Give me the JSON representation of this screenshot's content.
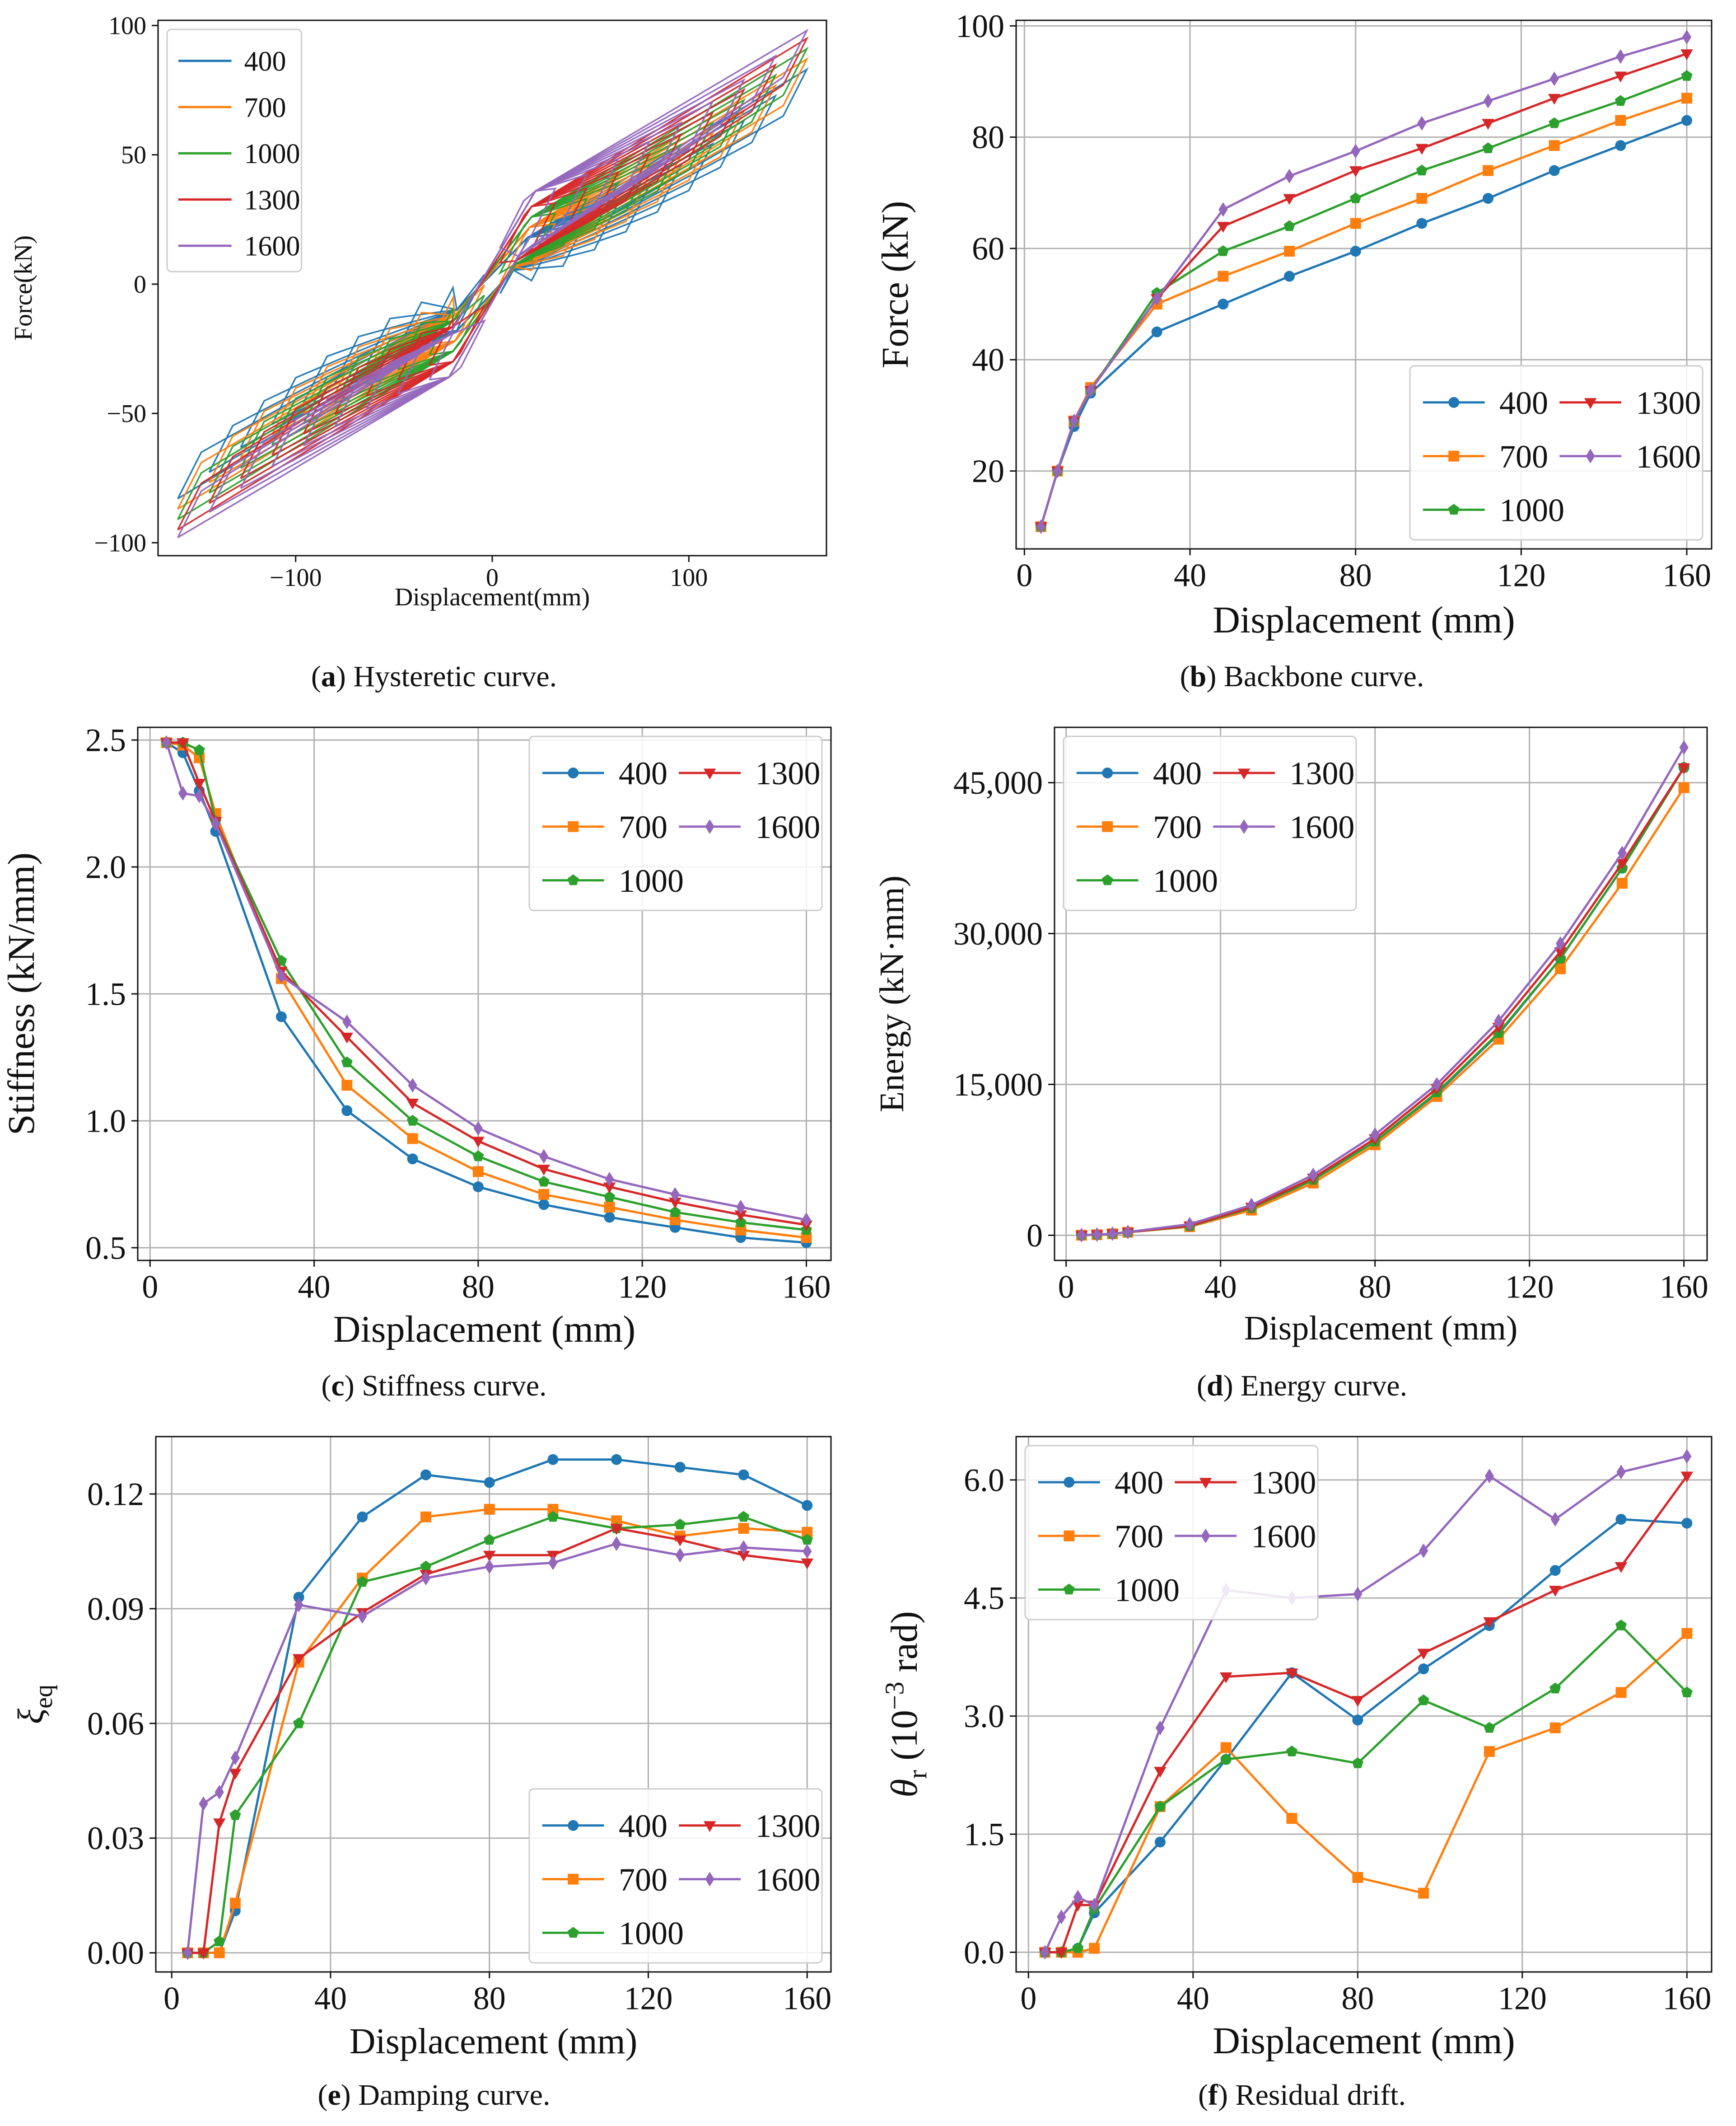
{
  "colors": {
    "400": "#1f77b4",
    "700": "#ff7f0e",
    "1000": "#2ca02c",
    "1300": "#d62728",
    "1600": "#9467bd"
  },
  "captions": {
    "a": {
      "letter": "a",
      "text": " Hysteretic curve."
    },
    "b": {
      "letter": "b",
      "text": " Backbone curve."
    },
    "c": {
      "letter": "c",
      "text": " Stiffness curve."
    },
    "d": {
      "letter": "d",
      "text": " Energy curve."
    },
    "e": {
      "letter": "e",
      "text": " Damping curve."
    },
    "f": {
      "letter": "f",
      "text": " Residual drift."
    }
  },
  "chart_data": [
    {
      "id": "a",
      "type": "line",
      "title": "",
      "xlabel": "Displacement(mm)",
      "ylabel": "Force(kN)",
      "xlim": [
        -170,
        170
      ],
      "ylim": [
        -105,
        102
      ],
      "xticks": [
        -100,
        0,
        100
      ],
      "xtick_labels": [
        "−100",
        "0",
        "100"
      ],
      "yticks": [
        -100,
        -50,
        0,
        50,
        100
      ],
      "ytick_labels": [
        "−100",
        "−50",
        "0",
        "50",
        "100"
      ],
      "grid": false,
      "legend": "top-left",
      "legend_ncol": 1,
      "series": [
        {
          "name": "400",
          "color_key": "400",
          "peak_force": 83,
          "peak_disp": 160,
          "yield_disp": 18,
          "yield_force": 10,
          "cycles": 10
        },
        {
          "name": "700",
          "color_key": "700",
          "peak_force": 87,
          "peak_disp": 160,
          "yield_disp": 19,
          "yield_force": 14,
          "cycles": 10
        },
        {
          "name": "1000",
          "color_key": "1000",
          "peak_force": 91,
          "peak_disp": 160,
          "yield_disp": 20,
          "yield_force": 18,
          "cycles": 10
        },
        {
          "name": "1300",
          "color_key": "1300",
          "peak_force": 95,
          "peak_disp": 160,
          "yield_disp": 20,
          "yield_force": 22,
          "cycles": 10
        },
        {
          "name": "1600",
          "color_key": "1600",
          "peak_force": 98,
          "peak_disp": 160,
          "yield_disp": 22,
          "yield_force": 28,
          "cycles": 10
        }
      ]
    },
    {
      "id": "b",
      "type": "line",
      "title": "",
      "xlabel": "Displacement (mm)",
      "ylabel": "Force (kN)",
      "xlim": [
        -2,
        166
      ],
      "ylim": [
        6,
        101
      ],
      "xticks": [
        0,
        40,
        80,
        120,
        160
      ],
      "xtick_labels": [
        "0",
        "40",
        "80",
        "120",
        "160"
      ],
      "yticks": [
        20,
        40,
        60,
        80,
        100
      ],
      "ytick_labels": [
        "20",
        "40",
        "60",
        "80",
        "100"
      ],
      "grid": true,
      "legend": "bottom-right",
      "legend_ncol": 2,
      "x": [
        4,
        8,
        12,
        16,
        32,
        48,
        64,
        80,
        96,
        112,
        128,
        144,
        160
      ],
      "series": [
        {
          "name": "400",
          "color_key": "400",
          "marker": "circle",
          "values": [
            10,
            20,
            28,
            34,
            45,
            50,
            55,
            59.5,
            64.5,
            69,
            74,
            78.5,
            83
          ]
        },
        {
          "name": "700",
          "color_key": "700",
          "marker": "square",
          "values": [
            10,
            20,
            29,
            35,
            50,
            55,
            59.5,
            64.5,
            69,
            74,
            78.5,
            83,
            87
          ]
        },
        {
          "name": "1000",
          "color_key": "1000",
          "marker": "pentagon",
          "values": [
            10,
            20,
            29,
            34.5,
            52,
            59.5,
            64,
            69,
            74,
            78,
            82.5,
            86.5,
            91
          ]
        },
        {
          "name": "1300",
          "color_key": "1300",
          "marker": "triangle-down",
          "values": [
            10,
            20,
            29,
            34.5,
            51,
            64,
            69,
            74,
            78,
            82.5,
            87,
            91,
            95
          ]
        },
        {
          "name": "1600",
          "color_key": "1600",
          "marker": "diamond",
          "values": [
            10,
            20,
            29,
            34.5,
            51,
            67,
            73,
            77.5,
            82.5,
            86.5,
            90.5,
            94.5,
            98
          ]
        }
      ]
    },
    {
      "id": "c",
      "type": "line",
      "title": "",
      "xlabel": "Displacement (mm)",
      "ylabel": "Stiffness (kN/mm)",
      "xlim": [
        -3,
        166
      ],
      "ylim": [
        0.45,
        2.55
      ],
      "xticks": [
        0,
        40,
        80,
        120,
        160
      ],
      "xtick_labels": [
        "0",
        "40",
        "80",
        "120",
        "160"
      ],
      "yticks": [
        0.5,
        1.0,
        1.5,
        2.0,
        2.5
      ],
      "ytick_labels": [
        "0.5",
        "1.0",
        "1.5",
        "2.0",
        "2.5"
      ],
      "grid": true,
      "legend": "top-right",
      "legend_ncol": 2,
      "x": [
        4,
        8,
        12,
        16,
        32,
        48,
        64,
        80,
        96,
        112,
        128,
        144,
        160
      ],
      "series": [
        {
          "name": "400",
          "color_key": "400",
          "marker": "circle",
          "values": [
            2.49,
            2.45,
            2.3,
            2.14,
            1.41,
            1.04,
            0.85,
            0.74,
            0.67,
            0.62,
            0.58,
            0.54,
            0.52
          ]
        },
        {
          "name": "700",
          "color_key": "700",
          "marker": "square",
          "values": [
            2.49,
            2.48,
            2.43,
            2.21,
            1.56,
            1.14,
            0.93,
            0.8,
            0.71,
            0.66,
            0.61,
            0.57,
            0.54
          ]
        },
        {
          "name": "1000",
          "color_key": "1000",
          "marker": "pentagon",
          "values": [
            2.49,
            2.49,
            2.46,
            2.18,
            1.63,
            1.23,
            1.0,
            0.86,
            0.76,
            0.7,
            0.64,
            0.6,
            0.57
          ]
        },
        {
          "name": "1300",
          "color_key": "1300",
          "marker": "triangle-down",
          "values": [
            2.49,
            2.49,
            2.33,
            2.18,
            1.59,
            1.33,
            1.07,
            0.92,
            0.81,
            0.74,
            0.68,
            0.63,
            0.59
          ]
        },
        {
          "name": "1600",
          "color_key": "1600",
          "marker": "diamond",
          "values": [
            2.49,
            2.29,
            2.28,
            2.17,
            1.57,
            1.39,
            1.14,
            0.97,
            0.86,
            0.77,
            0.71,
            0.66,
            0.61
          ]
        }
      ]
    },
    {
      "id": "d",
      "type": "line",
      "title": "",
      "xlabel": "Displacement (mm)",
      "ylabel": "Energy (kN·mm)",
      "xlim": [
        -3,
        166
      ],
      "ylim": [
        -2500,
        50500
      ],
      "xticks": [
        0,
        40,
        80,
        120,
        160
      ],
      "xtick_labels": [
        "0",
        "40",
        "80",
        "120",
        "160"
      ],
      "yticks": [
        0,
        15000,
        30000,
        45000
      ],
      "ytick_labels": [
        "0",
        "15,000",
        "30,000",
        "45,000"
      ],
      "grid": true,
      "legend": "top-left",
      "legend_ncol": 2,
      "x": [
        4,
        8,
        12,
        16,
        32,
        48,
        64,
        80,
        96,
        112,
        128,
        144,
        160
      ],
      "series": [
        {
          "name": "400",
          "color_key": "400",
          "marker": "circle",
          "values": [
            10,
            60,
            150,
            300,
            900,
            2600,
            5500,
            9300,
            14100,
            20000,
            27500,
            36500,
            46500
          ]
        },
        {
          "name": "700",
          "color_key": "700",
          "marker": "square",
          "values": [
            10,
            60,
            150,
            300,
            850,
            2500,
            5200,
            9000,
            13800,
            19500,
            26500,
            35000,
            44500
          ]
        },
        {
          "name": "1000",
          "color_key": "1000",
          "marker": "pentagon",
          "values": [
            10,
            60,
            150,
            300,
            900,
            2700,
            5500,
            9300,
            14200,
            20100,
            27500,
            36500,
            46500
          ]
        },
        {
          "name": "1300",
          "color_key": "1300",
          "marker": "triangle-down",
          "values": [
            10,
            60,
            150,
            300,
            950,
            2800,
            5700,
            9600,
            14600,
            20700,
            28200,
            37000,
            46500
          ]
        },
        {
          "name": "1600",
          "color_key": "1600",
          "marker": "diamond",
          "values": [
            10,
            70,
            160,
            320,
            1100,
            3000,
            6000,
            10000,
            15000,
            21300,
            29000,
            38000,
            48500
          ]
        }
      ]
    },
    {
      "id": "e",
      "type": "line",
      "title": "",
      "xlabel": "Displacement (mm)",
      "ylabel": "ξ",
      "ylabel_sub": "eq",
      "xlim": [
        -4,
        166
      ],
      "ylim": [
        -0.005,
        0.135
      ],
      "xticks": [
        0,
        40,
        80,
        120,
        160
      ],
      "xtick_labels": [
        "0",
        "40",
        "80",
        "120",
        "160"
      ],
      "yticks": [
        0.0,
        0.03,
        0.06,
        0.09,
        0.12
      ],
      "ytick_labels": [
        "0.00",
        "0.03",
        "0.06",
        "0.09",
        "0.12"
      ],
      "grid": true,
      "legend": "bottom-right",
      "legend_ncol": 2,
      "x": [
        4,
        8,
        12,
        16,
        32,
        48,
        64,
        80,
        96,
        112,
        128,
        144,
        160
      ],
      "series": [
        {
          "name": "400",
          "color_key": "400",
          "marker": "circle",
          "values": [
            0.0,
            0.0,
            0.0,
            0.011,
            0.093,
            0.114,
            0.125,
            0.123,
            0.129,
            0.129,
            0.127,
            0.125,
            0.117
          ]
        },
        {
          "name": "700",
          "color_key": "700",
          "marker": "square",
          "values": [
            0.0,
            0.0,
            0.0,
            0.013,
            0.076,
            0.098,
            0.114,
            0.116,
            0.116,
            0.113,
            0.109,
            0.111,
            0.11
          ]
        },
        {
          "name": "1000",
          "color_key": "1000",
          "marker": "pentagon",
          "values": [
            0.0,
            0.0,
            0.003,
            0.036,
            0.06,
            0.097,
            0.101,
            0.108,
            0.114,
            0.111,
            0.112,
            0.114,
            0.108
          ]
        },
        {
          "name": "1300",
          "color_key": "1300",
          "marker": "triangle-down",
          "values": [
            0.0,
            0.0,
            0.034,
            0.047,
            0.077,
            0.089,
            0.099,
            0.104,
            0.104,
            0.111,
            0.108,
            0.104,
            0.102
          ]
        },
        {
          "name": "1600",
          "color_key": "1600",
          "marker": "diamond",
          "values": [
            0.0,
            0.039,
            0.042,
            0.051,
            0.091,
            0.088,
            0.098,
            0.101,
            0.102,
            0.107,
            0.104,
            0.106,
            0.105
          ]
        }
      ]
    },
    {
      "id": "f",
      "type": "line",
      "title": "",
      "xlabel": "Displacement (mm)",
      "ylabel": "θ",
      "ylabel_sub": "r",
      "ylabel_rest": " (10",
      "ylabel_sup": "−3",
      "ylabel_end": " rad)",
      "xlim": [
        -3,
        166
      ],
      "ylim": [
        -0.25,
        6.55
      ],
      "xticks": [
        0,
        40,
        80,
        120,
        160
      ],
      "xtick_labels": [
        "0",
        "40",
        "80",
        "120",
        "160"
      ],
      "yticks": [
        0.0,
        1.5,
        3.0,
        4.5,
        6.0
      ],
      "ytick_labels": [
        "0.0",
        "1.5",
        "3.0",
        "4.5",
        "6.0"
      ],
      "grid": true,
      "legend": "top-left",
      "legend_ncol": 2,
      "x": [
        4,
        8,
        12,
        16,
        32,
        48,
        64,
        80,
        96,
        112,
        128,
        144,
        160
      ],
      "series": [
        {
          "name": "400",
          "color_key": "400",
          "marker": "circle",
          "values": [
            0.0,
            0.0,
            0.05,
            0.5,
            1.4,
            2.45,
            3.55,
            2.95,
            3.6,
            4.15,
            4.85,
            5.5,
            5.45
          ]
        },
        {
          "name": "700",
          "color_key": "700",
          "marker": "square",
          "values": [
            0.0,
            0.0,
            0.0,
            0.05,
            1.85,
            2.6,
            1.7,
            0.95,
            0.75,
            2.55,
            2.85,
            3.3,
            4.05
          ]
        },
        {
          "name": "1000",
          "color_key": "1000",
          "marker": "pentagon",
          "values": [
            0.0,
            0.0,
            0.05,
            0.55,
            1.85,
            2.45,
            2.55,
            2.4,
            3.2,
            2.85,
            3.35,
            4.15,
            3.3
          ]
        },
        {
          "name": "1300",
          "color_key": "1300",
          "marker": "triangle-down",
          "values": [
            0.0,
            0.0,
            0.6,
            0.6,
            2.3,
            3.5,
            3.55,
            3.2,
            3.8,
            4.2,
            4.6,
            4.9,
            6.05
          ]
        },
        {
          "name": "1600",
          "color_key": "1600",
          "marker": "diamond",
          "values": [
            0.0,
            0.45,
            0.7,
            0.6,
            2.85,
            4.6,
            4.5,
            4.55,
            5.1,
            6.05,
            5.5,
            6.1,
            6.3
          ]
        }
      ]
    }
  ]
}
